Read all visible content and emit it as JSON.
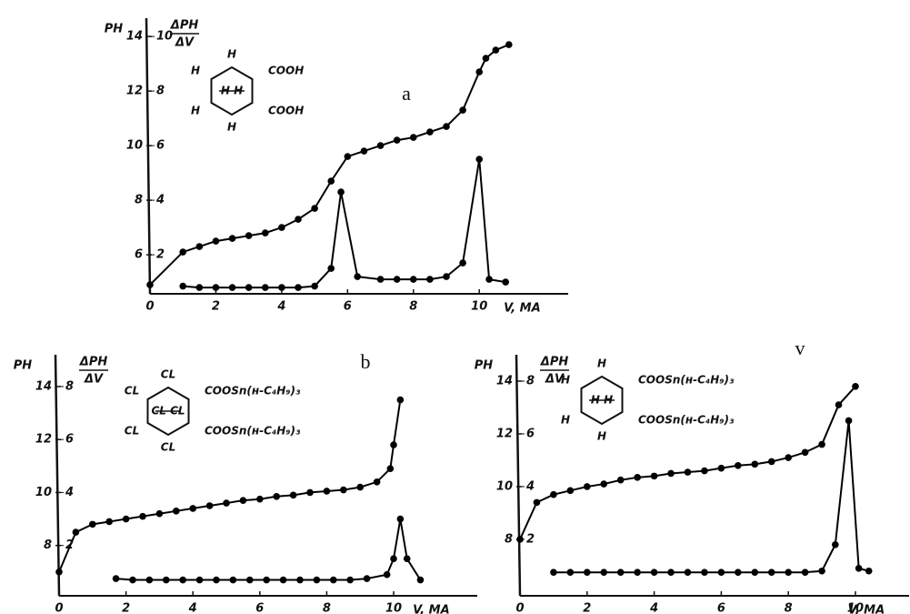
{
  "chart_data": [
    {
      "type": "line",
      "panel_label": "a",
      "y_label": "PH",
      "y2_label": [
        "ΔPH",
        "ΔV"
      ],
      "x_label": "V, MA",
      "formula": [
        "H",
        "H",
        "H",
        "H",
        "H H",
        "COOH",
        "COOH"
      ],
      "xlim": [
        0,
        12.7
      ],
      "xticks": [
        0,
        2,
        4,
        6,
        8,
        10
      ],
      "ylim": [
        4.57,
        14.67
      ],
      "yticks": [
        6,
        8,
        10,
        12,
        14
      ],
      "y2lim": [
        0.57,
        10.67
      ],
      "y2ticks": [
        2,
        4,
        6,
        8,
        10
      ],
      "series": [
        {
          "axis": "y",
          "color": "#000000",
          "x": [
            0,
            1,
            1.5,
            2,
            2.5,
            3,
            3.5,
            4,
            4.5,
            5,
            5.5,
            6,
            6.5,
            7,
            7.5,
            8,
            8.5,
            9,
            9.5,
            10,
            10.2,
            10.5,
            10.9
          ],
          "values": [
            4.9,
            6.1,
            6.3,
            6.5,
            6.6,
            6.7,
            6.8,
            7.0,
            7.3,
            7.7,
            8.7,
            9.6,
            9.8,
            10.0,
            10.2,
            10.3,
            10.5,
            10.7,
            11.3,
            12.7,
            13.2,
            13.5,
            13.7
          ]
        },
        {
          "axis": "y2",
          "color": "#000000",
          "x": [
            1,
            1.5,
            2,
            2.5,
            3,
            3.5,
            4,
            4.5,
            5,
            5.5,
            5.8,
            6.3,
            7,
            7.5,
            8,
            8.5,
            9,
            9.5,
            10,
            10.3,
            10.8
          ],
          "values": [
            0.85,
            0.8,
            0.8,
            0.8,
            0.8,
            0.8,
            0.8,
            0.8,
            0.85,
            1.5,
            4.3,
            1.2,
            1.1,
            1.1,
            1.1,
            1.1,
            1.2,
            1.7,
            5.5,
            1.1,
            1.0
          ]
        }
      ]
    },
    {
      "type": "line",
      "panel_label": "b",
      "y_label": "PH",
      "y2_label": [
        "ΔPH",
        "ΔV"
      ],
      "x_label": "V, MA",
      "formula": [
        "CL",
        "CL",
        "CL",
        "CL",
        "CL CL",
        "COOSn(н-C₄H₉)₃",
        "COOSn(н-C₄H₉)₃"
      ],
      "xlim": [
        0,
        12.5
      ],
      "xticks": [
        0,
        2,
        4,
        6,
        8,
        10
      ],
      "ylim": [
        6.1,
        15.2
      ],
      "yticks": [
        8,
        10,
        12,
        14
      ],
      "y2lim": [
        0.1,
        9.2
      ],
      "y2ticks": [
        2,
        4,
        6,
        8
      ],
      "series": [
        {
          "axis": "y",
          "color": "#000000",
          "x": [
            0,
            0.5,
            1,
            1.5,
            2,
            2.5,
            3,
            3.5,
            4,
            4.5,
            5,
            5.5,
            6,
            6.5,
            7,
            7.5,
            8,
            8.5,
            9,
            9.5,
            9.9,
            10,
            10.2
          ],
          "values": [
            7.0,
            8.5,
            8.8,
            8.9,
            9.0,
            9.1,
            9.2,
            9.3,
            9.4,
            9.5,
            9.6,
            9.7,
            9.75,
            9.85,
            9.9,
            10.0,
            10.05,
            10.1,
            10.2,
            10.4,
            10.9,
            11.8,
            13.5
          ]
        },
        {
          "axis": "y2",
          "color": "#000000",
          "x": [
            1.7,
            2.2,
            2.7,
            3.2,
            3.7,
            4.2,
            4.7,
            5.2,
            5.7,
            6.2,
            6.7,
            7.2,
            7.7,
            8.2,
            8.7,
            9.2,
            9.8,
            10,
            10.2,
            10.4,
            10.8
          ],
          "values": [
            0.75,
            0.7,
            0.7,
            0.7,
            0.7,
            0.7,
            0.7,
            0.7,
            0.7,
            0.7,
            0.7,
            0.7,
            0.7,
            0.7,
            0.7,
            0.75,
            0.9,
            1.5,
            3.0,
            1.5,
            0.7
          ]
        }
      ]
    },
    {
      "type": "line",
      "panel_label": "v",
      "y_label": "PH",
      "y2_label": [
        "ΔPH",
        "ΔV"
      ],
      "x_label": "V, MA",
      "formula": [
        "H",
        "H",
        "H",
        "H",
        "H H",
        "COOSn(н-C₄H₉)₃",
        "COOSn(н-C₄H₉)₃"
      ],
      "xlim": [
        0,
        11.6
      ],
      "xticks": [
        0,
        2,
        4,
        6,
        8,
        10
      ],
      "ylim": [
        5.86,
        15.0
      ],
      "yticks": [
        8,
        10,
        12,
        14
      ],
      "y2lim": [
        -0.14,
        9.0
      ],
      "y2ticks": [
        2,
        4,
        6,
        8
      ],
      "series": [
        {
          "axis": "y",
          "color": "#000000",
          "x": [
            0,
            0.5,
            1,
            1.5,
            2,
            2.5,
            3,
            3.5,
            4,
            4.5,
            5,
            5.5,
            6,
            6.5,
            7,
            7.5,
            8,
            8.5,
            9,
            9.5,
            10
          ],
          "values": [
            8.0,
            9.4,
            9.7,
            9.85,
            10.0,
            10.1,
            10.25,
            10.35,
            10.4,
            10.5,
            10.55,
            10.6,
            10.7,
            10.8,
            10.85,
            10.95,
            11.1,
            11.3,
            11.6,
            13.1,
            13.8
          ]
        },
        {
          "axis": "y2",
          "color": "#000000",
          "x": [
            1,
            1.5,
            2,
            2.5,
            3,
            3.5,
            4,
            4.5,
            5,
            5.5,
            6,
            6.5,
            7,
            7.5,
            8,
            8.5,
            9,
            9.4,
            9.8,
            10.1,
            10.4
          ],
          "values": [
            0.75,
            0.75,
            0.75,
            0.75,
            0.75,
            0.75,
            0.75,
            0.75,
            0.75,
            0.75,
            0.75,
            0.75,
            0.75,
            0.75,
            0.75,
            0.75,
            0.8,
            1.8,
            6.5,
            0.9,
            0.8
          ]
        }
      ]
    }
  ]
}
